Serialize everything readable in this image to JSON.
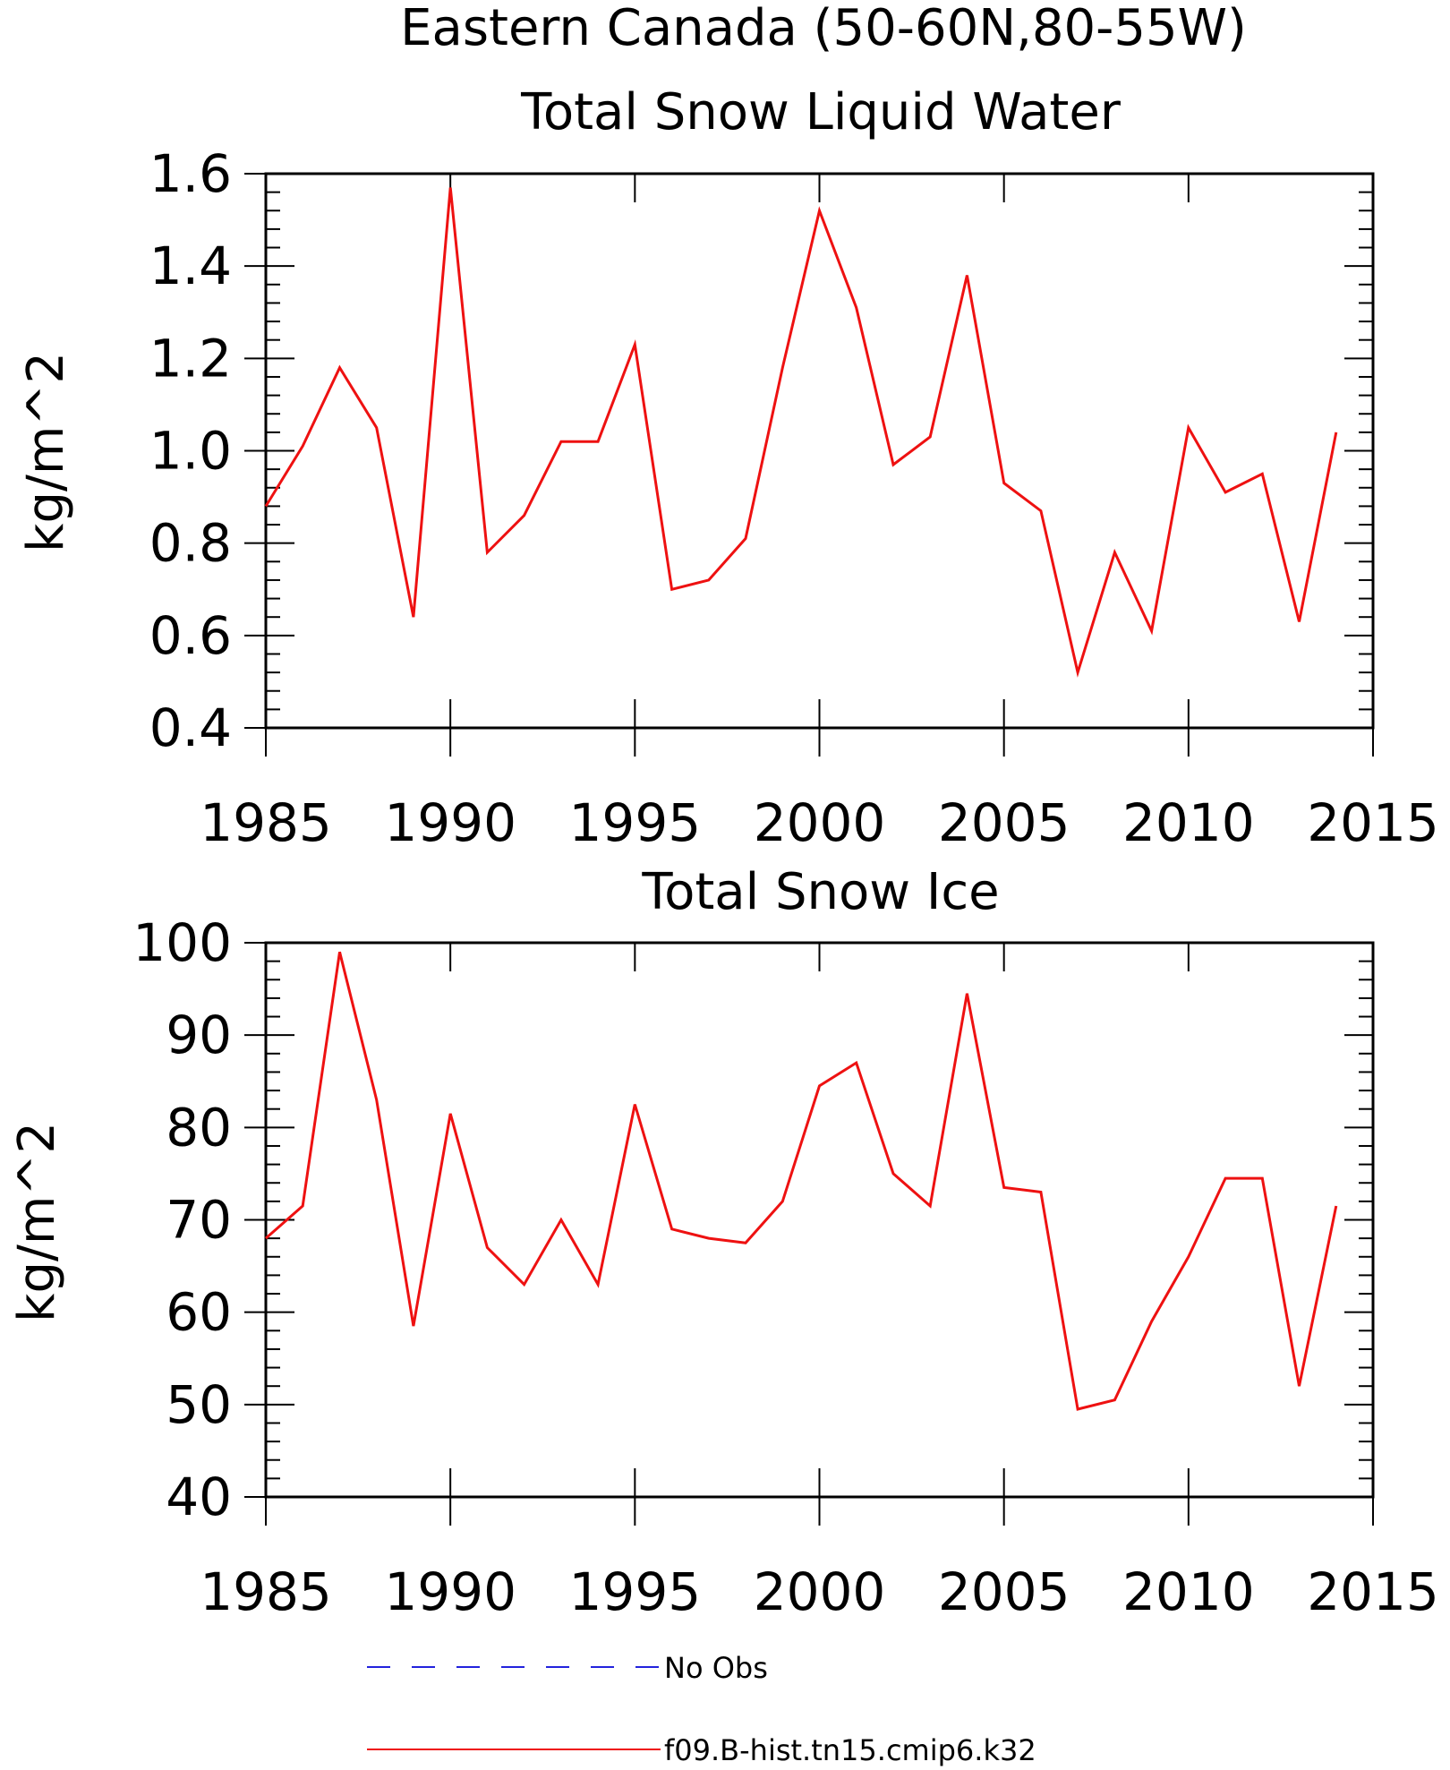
{
  "figure": {
    "title": "Eastern Canada (50-60N,80-55W)"
  },
  "chart_data": [
    {
      "type": "line",
      "title": "Total Snow Liquid Water",
      "xlabel": "",
      "ylabel": "kg/m^2",
      "xlim": [
        1985,
        2015
      ],
      "ylim": [
        0.4,
        1.6
      ],
      "xticks": [
        1985,
        1990,
        1995,
        2000,
        2005,
        2010,
        2015
      ],
      "yticks": [
        0.4,
        0.6,
        0.8,
        1.0,
        1.2,
        1.4,
        1.6
      ],
      "ytick_labels": [
        "0.4",
        "0.6",
        "0.8",
        "1.0",
        "1.2",
        "1.4",
        "1.6"
      ],
      "x": [
        1985,
        1986,
        1987,
        1988,
        1989,
        1990,
        1991,
        1992,
        1993,
        1994,
        1995,
        1996,
        1997,
        1998,
        1999,
        2000,
        2001,
        2002,
        2003,
        2004,
        2005,
        2006,
        2007,
        2008,
        2009,
        2010,
        2011,
        2012,
        2013,
        2014
      ],
      "series": [
        {
          "name": "f09.B-hist.tn15.cmip6.k32",
          "color": "#ee1111",
          "values": [
            0.88,
            1.01,
            1.18,
            1.05,
            0.64,
            1.57,
            0.78,
            0.86,
            1.02,
            1.02,
            1.23,
            0.7,
            0.72,
            0.81,
            1.18,
            1.52,
            1.31,
            0.97,
            1.03,
            1.38,
            0.93,
            0.87,
            0.52,
            0.78,
            0.61,
            1.05,
            0.91,
            0.95,
            0.63,
            1.04
          ]
        }
      ]
    },
    {
      "type": "line",
      "title": "Total Snow Ice",
      "xlabel": "",
      "ylabel": "kg/m^2",
      "xlim": [
        1985,
        2015
      ],
      "ylim": [
        40,
        100
      ],
      "xticks": [
        1985,
        1990,
        1995,
        2000,
        2005,
        2010,
        2015
      ],
      "yticks": [
        40,
        50,
        60,
        70,
        80,
        90,
        100
      ],
      "ytick_labels": [
        "40",
        "50",
        "60",
        "70",
        "80",
        "90",
        "100"
      ],
      "x": [
        1985,
        1986,
        1987,
        1988,
        1989,
        1990,
        1991,
        1992,
        1993,
        1994,
        1995,
        1996,
        1997,
        1998,
        1999,
        2000,
        2001,
        2002,
        2003,
        2004,
        2005,
        2006,
        2007,
        2008,
        2009,
        2010,
        2011,
        2012,
        2013,
        2014
      ],
      "series": [
        {
          "name": "f09.B-hist.tn15.cmip6.k32",
          "color": "#ee1111",
          "values": [
            68,
            71.5,
            99,
            83,
            58.5,
            81.5,
            67,
            63,
            70,
            63,
            82.5,
            69,
            68,
            67.5,
            72,
            84.5,
            87,
            75,
            71.5,
            94.5,
            73.5,
            73,
            49.5,
            50.5,
            59,
            66,
            74.5,
            74.5,
            52,
            71.5
          ]
        }
      ]
    }
  ],
  "legend": {
    "placement": "bottom",
    "entries": [
      {
        "label": "No Obs",
        "color": "#2222dd",
        "style": "dashed"
      },
      {
        "label": "f09.B-hist.tn15.cmip6.k32",
        "color": "#ee1111",
        "style": "solid"
      }
    ]
  }
}
